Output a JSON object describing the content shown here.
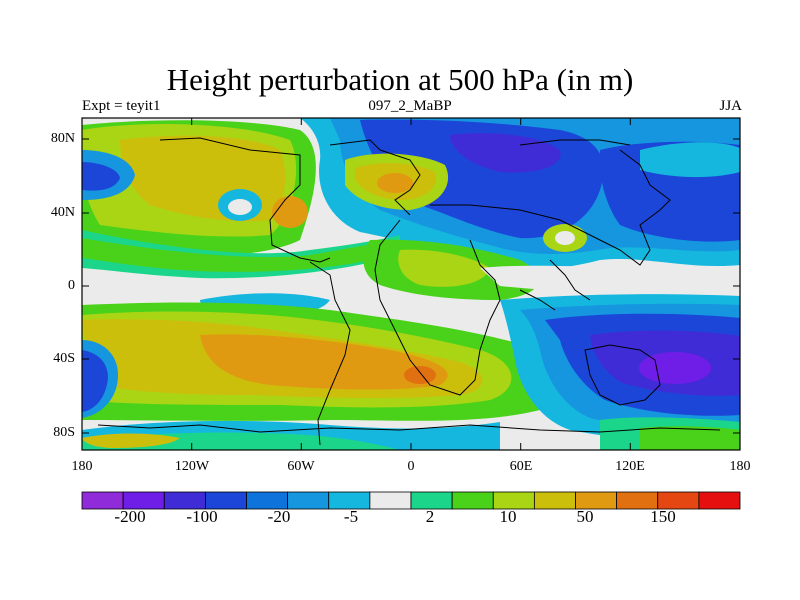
{
  "title": "Height perturbation at 500 hPa (in m)",
  "left_label": "Expt = teyit1",
  "center_label": "097_2_MaBP",
  "right_label": "JJA",
  "lat_ticks": [
    "80N",
    "40N",
    "0",
    "40S",
    "80S"
  ],
  "lon_ticks": [
    "180",
    "120W",
    "60W",
    "0",
    "60E",
    "120E",
    "180"
  ],
  "colorbar": {
    "colors": [
      "#8f2bd9",
      "#6f1ee8",
      "#3f2cd6",
      "#1c46d8",
      "#0f73dc",
      "#1596df",
      "#16b7df",
      "#ebebeb",
      "#1bd68a",
      "#4ad21a",
      "#a9d515",
      "#ccbf0c",
      "#e09a12",
      "#e07010",
      "#e54712",
      "#e50f0f"
    ],
    "labels": [
      "-200",
      "-100",
      "-20",
      "-5",
      "2",
      "10",
      "50",
      "150"
    ]
  }
}
